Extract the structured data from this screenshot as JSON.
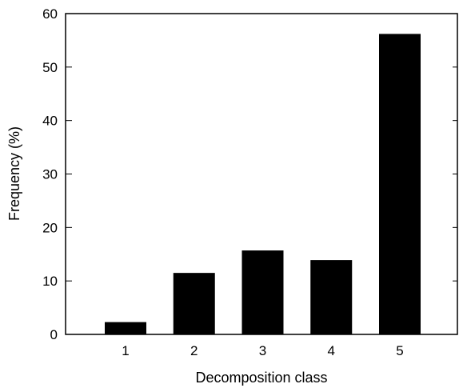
{
  "chart_data": {
    "type": "bar",
    "title": "",
    "xlabel": "Decomposition class",
    "ylabel": "Frequency (%)",
    "categories": [
      "1",
      "2",
      "3",
      "4",
      "5"
    ],
    "values": [
      2.3,
      11.5,
      15.7,
      13.9,
      56.2
    ],
    "ylim": [
      0,
      60
    ],
    "yticks": [
      0,
      10,
      20,
      30,
      40,
      50,
      60
    ],
    "grid": false,
    "legend": "none",
    "bar_color": "#000000"
  }
}
